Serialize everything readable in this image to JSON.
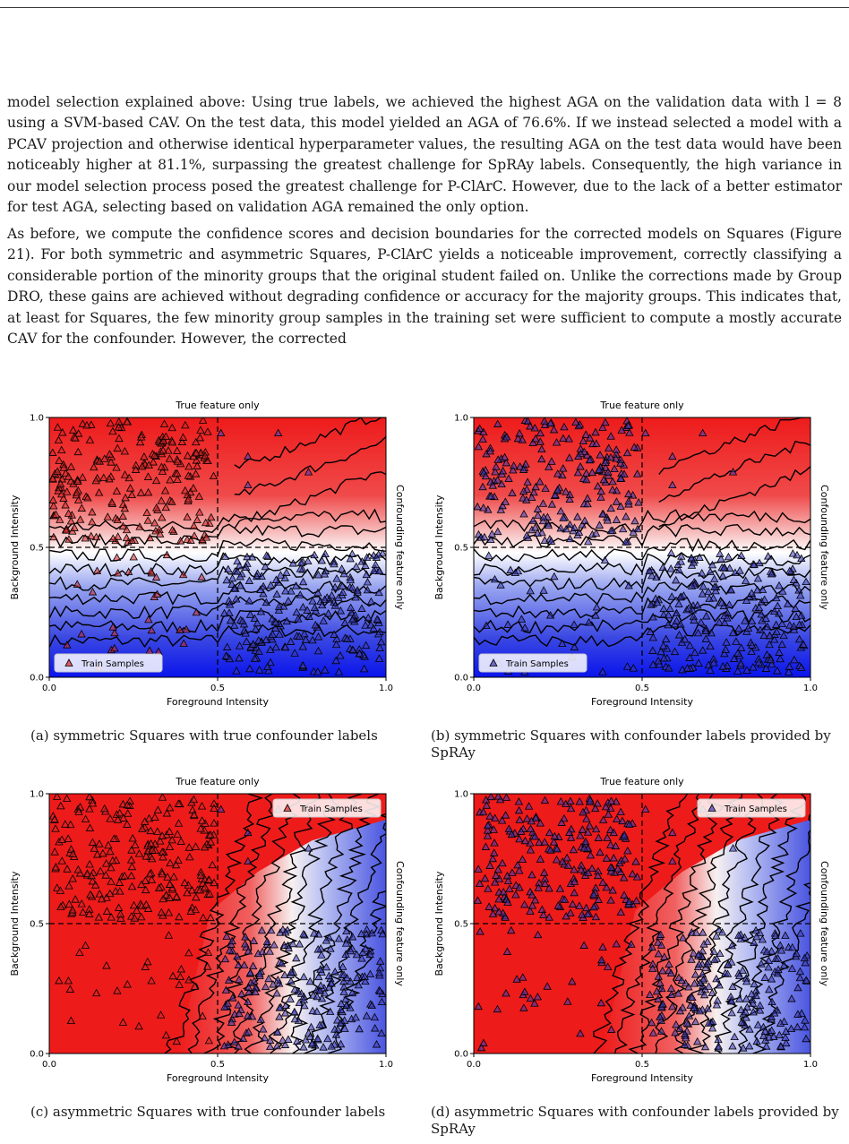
{
  "paragraphs": [
    "model selection explained above: Using true labels, we achieved the highest AGA on the validation data with l = 8 using a SVM-based CAV. On the test data, this model yielded an AGA of 76.6%. If we instead selected a model with a PCAV projection and otherwise identical hyperparameter values, the resulting AGA on the test data would have been noticeably higher at 81.1%, surpassing the greatest challenge for SpRAy labels. Consequently, the high variance in our model selection process posed the greatest challenge for P-ClArC. However, due to the lack of a better estimator for test AGA, selecting based on validation AGA remained the only option.",
    "As before, we compute the confidence scores and decision boundaries for the corrected models on Squares (Figure 21). For both symmetric and asymmetric Squares, P-ClArC yields a noticeable improvement, correctly classifying a considerable portion of the minority groups that the original student failed on. Unlike the corrections made by Group DRO, these gains are achieved without degrading confidence or accuracy for the majority groups. This indicates that, at least for Squares, the few minority group samples in the training set were sufficient to compute a mostly accurate CAV for the confounder. However, the corrected"
  ],
  "panels": [
    {
      "id": "a",
      "caption": "(a) symmetric Squares with true confounder labels",
      "marker_color": "#d62728",
      "legend_pos": "bottom-left",
      "variant": "symmetric"
    },
    {
      "id": "b",
      "caption": "(b) symmetric Squares with confounder labels provided by SpRAy",
      "marker_color": "#3b3bb8",
      "legend_pos": "bottom-left",
      "variant": "symmetric"
    },
    {
      "id": "c",
      "caption": "(c) asymmetric Squares with true confounder labels",
      "marker_color": "#d62728",
      "legend_pos": "top-right",
      "variant": "asymmetric"
    },
    {
      "id": "d",
      "caption": "(d) asymmetric Squares with confounder labels provided by SpRAy",
      "marker_color": "#3b3bb8",
      "legend_pos": "top-right",
      "variant": "asymmetric"
    }
  ],
  "chart_data": [
    {
      "type": "scatter",
      "panel": "a",
      "title": "True feature only",
      "xlabel": "Foreground Intensity",
      "ylabel": "Background Intensity",
      "right_label": "Confounding feature only",
      "xlim": [
        0,
        1
      ],
      "ylim": [
        0,
        1
      ],
      "xticks": [
        "0.0",
        "0.5",
        "1.0"
      ],
      "yticks": [
        "0.0",
        "0.5",
        "1.0"
      ],
      "legend": "Train Samples",
      "colormap": "red-white-blue",
      "dashed_lines": {
        "x": 0.5,
        "y": 0.5
      }
    },
    {
      "type": "scatter",
      "panel": "b",
      "title": "True feature only",
      "xlabel": "Foreground Intensity",
      "ylabel": "Background Intensity",
      "right_label": "Confounding feature only",
      "xlim": [
        0,
        1
      ],
      "ylim": [
        0,
        1
      ],
      "xticks": [
        "0.0",
        "0.5",
        "1.0"
      ],
      "yticks": [
        "0.0",
        "0.5",
        "1.0"
      ],
      "legend": "Train Samples",
      "colormap": "red-white-blue",
      "dashed_lines": {
        "x": 0.5,
        "y": 0.5
      }
    },
    {
      "type": "scatter",
      "panel": "c",
      "title": "True feature only",
      "xlabel": "Foreground Intensity",
      "ylabel": "Background Intensity",
      "right_label": "Confounding feature only",
      "xlim": [
        0,
        1
      ],
      "ylim": [
        0,
        1
      ],
      "xticks": [
        "0.0",
        "0.5",
        "1.0"
      ],
      "yticks": [
        "0.0",
        "0.5",
        "1.0"
      ],
      "legend": "Train Samples",
      "colormap": "red-white-blue",
      "dashed_lines": {
        "x": 0.5,
        "y": 0.5
      }
    },
    {
      "type": "scatter",
      "panel": "d",
      "title": "True feature only",
      "xlabel": "Foreground Intensity",
      "ylabel": "Background Intensity",
      "right_label": "Confounding feature only",
      "xlim": [
        0,
        1
      ],
      "ylim": [
        0,
        1
      ],
      "xticks": [
        "0.0",
        "0.5",
        "1.0"
      ],
      "yticks": [
        "0.0",
        "0.5",
        "1.0"
      ],
      "legend": "Train Samples",
      "colormap": "red-white-blue",
      "dashed_lines": {
        "x": 0.5,
        "y": 0.5
      }
    }
  ]
}
